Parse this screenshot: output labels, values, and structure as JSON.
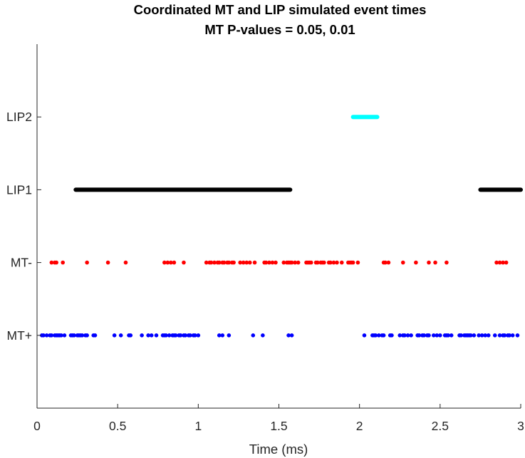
{
  "chart_data": {
    "type": "scatter",
    "title": "Coordinated MT and LIP simulated event times",
    "subtitle": "MT P-values = 0.05, 0.01",
    "xlabel": "Time (ms)",
    "ylabel": "",
    "xlim": [
      0,
      3
    ],
    "ylim": [
      0,
      5
    ],
    "xticks": [
      0,
      0.5,
      1,
      1.5,
      2,
      2.5,
      3
    ],
    "xtick_labels": [
      "0",
      "0.5",
      "1",
      "1.5",
      "2",
      "2.5",
      "3"
    ],
    "yticks": [
      1,
      2,
      3,
      4
    ],
    "ytick_labels": [
      "MT+",
      "MT-",
      "LIP1",
      "LIP2"
    ],
    "grid": false,
    "series": [
      {
        "name": "MT+",
        "y": 1,
        "color": "#0000ff",
        "style": "dots",
        "x": [
          0.03,
          0.04,
          0.06,
          0.08,
          0.09,
          0.11,
          0.12,
          0.13,
          0.14,
          0.15,
          0.17,
          0.21,
          0.22,
          0.23,
          0.25,
          0.26,
          0.27,
          0.28,
          0.3,
          0.31,
          0.35,
          0.36,
          0.48,
          0.52,
          0.57,
          0.58,
          0.65,
          0.69,
          0.71,
          0.74,
          0.78,
          0.79,
          0.8,
          0.82,
          0.84,
          0.85,
          0.86,
          0.88,
          0.89,
          0.91,
          0.92,
          0.94,
          0.95,
          0.97,
          0.98,
          1.0,
          1.13,
          1.15,
          1.19,
          1.34,
          1.4,
          1.56,
          1.58,
          2.03,
          2.08,
          2.09,
          2.1,
          2.12,
          2.14,
          2.15,
          2.19,
          2.2,
          2.25,
          2.27,
          2.28,
          2.3,
          2.32,
          2.36,
          2.37,
          2.39,
          2.4,
          2.42,
          2.43,
          2.46,
          2.48,
          2.5,
          2.53,
          2.54,
          2.55,
          2.57,
          2.62,
          2.63,
          2.65,
          2.66,
          2.67,
          2.68,
          2.69,
          2.71,
          2.74,
          2.76,
          2.78,
          2.8,
          2.84,
          2.87,
          2.89,
          2.9,
          2.92,
          2.93,
          2.95,
          2.98
        ]
      },
      {
        "name": "MT-",
        "y": 2,
        "color": "#ff0000",
        "style": "dots",
        "x": [
          0.09,
          0.11,
          0.12,
          0.16,
          0.31,
          0.44,
          0.55,
          0.79,
          0.81,
          0.83,
          0.85,
          0.91,
          1.05,
          1.07,
          1.08,
          1.1,
          1.12,
          1.13,
          1.15,
          1.16,
          1.18,
          1.19,
          1.21,
          1.22,
          1.26,
          1.28,
          1.3,
          1.32,
          1.35,
          1.41,
          1.42,
          1.44,
          1.46,
          1.48,
          1.53,
          1.55,
          1.56,
          1.57,
          1.58,
          1.6,
          1.62,
          1.67,
          1.68,
          1.69,
          1.7,
          1.73,
          1.74,
          1.76,
          1.77,
          1.78,
          1.81,
          1.82,
          1.84,
          1.86,
          1.89,
          1.93,
          1.94,
          1.95,
          1.96,
          1.99,
          2.15,
          2.16,
          2.18,
          2.27,
          2.35,
          2.43,
          2.47,
          2.54,
          2.85,
          2.87,
          2.89,
          2.91
        ]
      },
      {
        "name": "LIP1",
        "y": 3,
        "color": "#000000",
        "style": "segments",
        "segments": [
          [
            0.24,
            1.57
          ],
          [
            2.75,
            3.0
          ]
        ]
      },
      {
        "name": "LIP2",
        "y": 4,
        "color": "#00ffff",
        "style": "segments",
        "segments": [
          [
            1.96,
            2.11
          ]
        ]
      }
    ]
  }
}
